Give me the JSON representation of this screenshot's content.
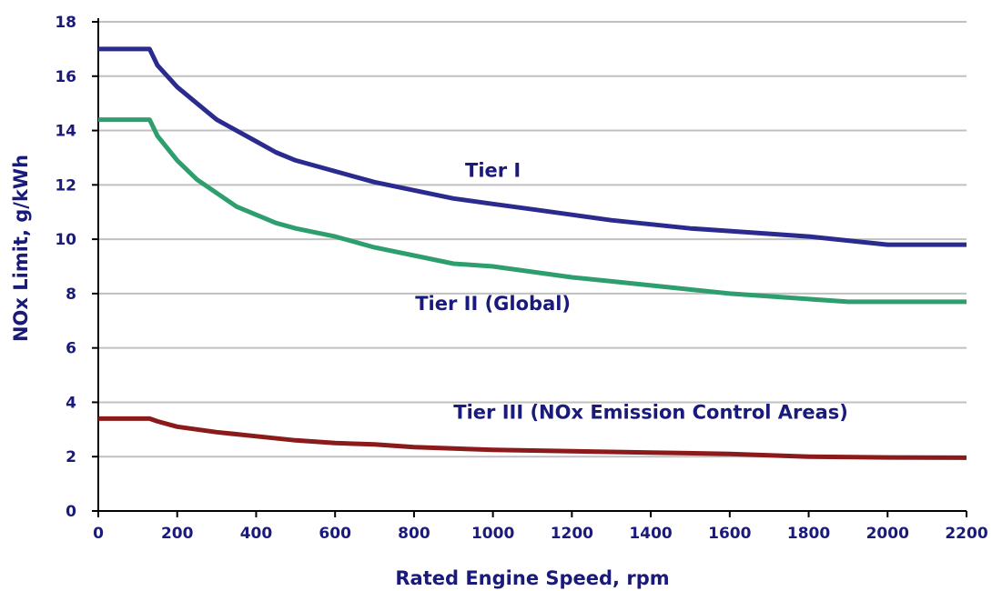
{
  "chart_data": {
    "type": "line",
    "xlabel": "Rated Engine Speed, rpm",
    "ylabel": "NOx Limit, g/kWh",
    "xlim": [
      0,
      2200
    ],
    "ylim": [
      0,
      18
    ],
    "x_ticks": [
      0,
      200,
      400,
      600,
      800,
      1000,
      1200,
      1400,
      1600,
      1800,
      2000,
      2200
    ],
    "y_ticks": [
      0,
      2,
      4,
      6,
      8,
      10,
      12,
      14,
      16,
      18
    ],
    "grid": "horizontal",
    "legend": "none",
    "series": [
      {
        "name": "Tier I",
        "color": "#2b2b8f",
        "label_anchor": [
          1000,
          12.3
        ],
        "points": [
          [
            0,
            17.0
          ],
          [
            130,
            17.0
          ],
          [
            150,
            16.4
          ],
          [
            200,
            15.6
          ],
          [
            250,
            15.0
          ],
          [
            300,
            14.4
          ],
          [
            350,
            14.0
          ],
          [
            400,
            13.6
          ],
          [
            450,
            13.2
          ],
          [
            500,
            12.9
          ],
          [
            600,
            12.5
          ],
          [
            700,
            12.1
          ],
          [
            800,
            11.8
          ],
          [
            900,
            11.5
          ],
          [
            1000,
            11.3
          ],
          [
            1100,
            11.1
          ],
          [
            1200,
            10.9
          ],
          [
            1300,
            10.7
          ],
          [
            1400,
            10.55
          ],
          [
            1500,
            10.4
          ],
          [
            1600,
            10.3
          ],
          [
            1700,
            10.2
          ],
          [
            1800,
            10.1
          ],
          [
            1900,
            9.95
          ],
          [
            2000,
            9.8
          ],
          [
            2200,
            9.8
          ]
        ]
      },
      {
        "name": "Tier II (Global)",
        "color": "#2e9e6e",
        "label_anchor": [
          1000,
          7.4
        ],
        "points": [
          [
            0,
            14.4
          ],
          [
            130,
            14.4
          ],
          [
            150,
            13.8
          ],
          [
            200,
            12.9
          ],
          [
            250,
            12.2
          ],
          [
            300,
            11.7
          ],
          [
            350,
            11.2
          ],
          [
            400,
            10.9
          ],
          [
            450,
            10.6
          ],
          [
            500,
            10.4
          ],
          [
            600,
            10.1
          ],
          [
            700,
            9.7
          ],
          [
            800,
            9.4
          ],
          [
            900,
            9.1
          ],
          [
            1000,
            9.0
          ],
          [
            1100,
            8.8
          ],
          [
            1200,
            8.6
          ],
          [
            1300,
            8.45
          ],
          [
            1400,
            8.3
          ],
          [
            1500,
            8.15
          ],
          [
            1600,
            8.0
          ],
          [
            1700,
            7.9
          ],
          [
            1800,
            7.8
          ],
          [
            1900,
            7.7
          ],
          [
            2000,
            7.7
          ],
          [
            2200,
            7.7
          ]
        ]
      },
      {
        "name": "Tier III (NOx Emission Control Areas)",
        "color": "#8b1a1a",
        "label_anchor": [
          1400,
          3.4
        ],
        "points": [
          [
            0,
            3.4
          ],
          [
            130,
            3.4
          ],
          [
            150,
            3.3
          ],
          [
            200,
            3.1
          ],
          [
            250,
            3.0
          ],
          [
            300,
            2.9
          ],
          [
            400,
            2.75
          ],
          [
            500,
            2.6
          ],
          [
            600,
            2.5
          ],
          [
            700,
            2.45
          ],
          [
            800,
            2.35
          ],
          [
            900,
            2.3
          ],
          [
            1000,
            2.25
          ],
          [
            1200,
            2.2
          ],
          [
            1400,
            2.15
          ],
          [
            1600,
            2.1
          ],
          [
            1800,
            2.0
          ],
          [
            2000,
            1.97
          ],
          [
            2200,
            1.96
          ]
        ]
      }
    ]
  },
  "colors": {
    "axis_text": "#1a1a7a",
    "grid": "#c0c0c0",
    "axis_line": "#000000"
  }
}
